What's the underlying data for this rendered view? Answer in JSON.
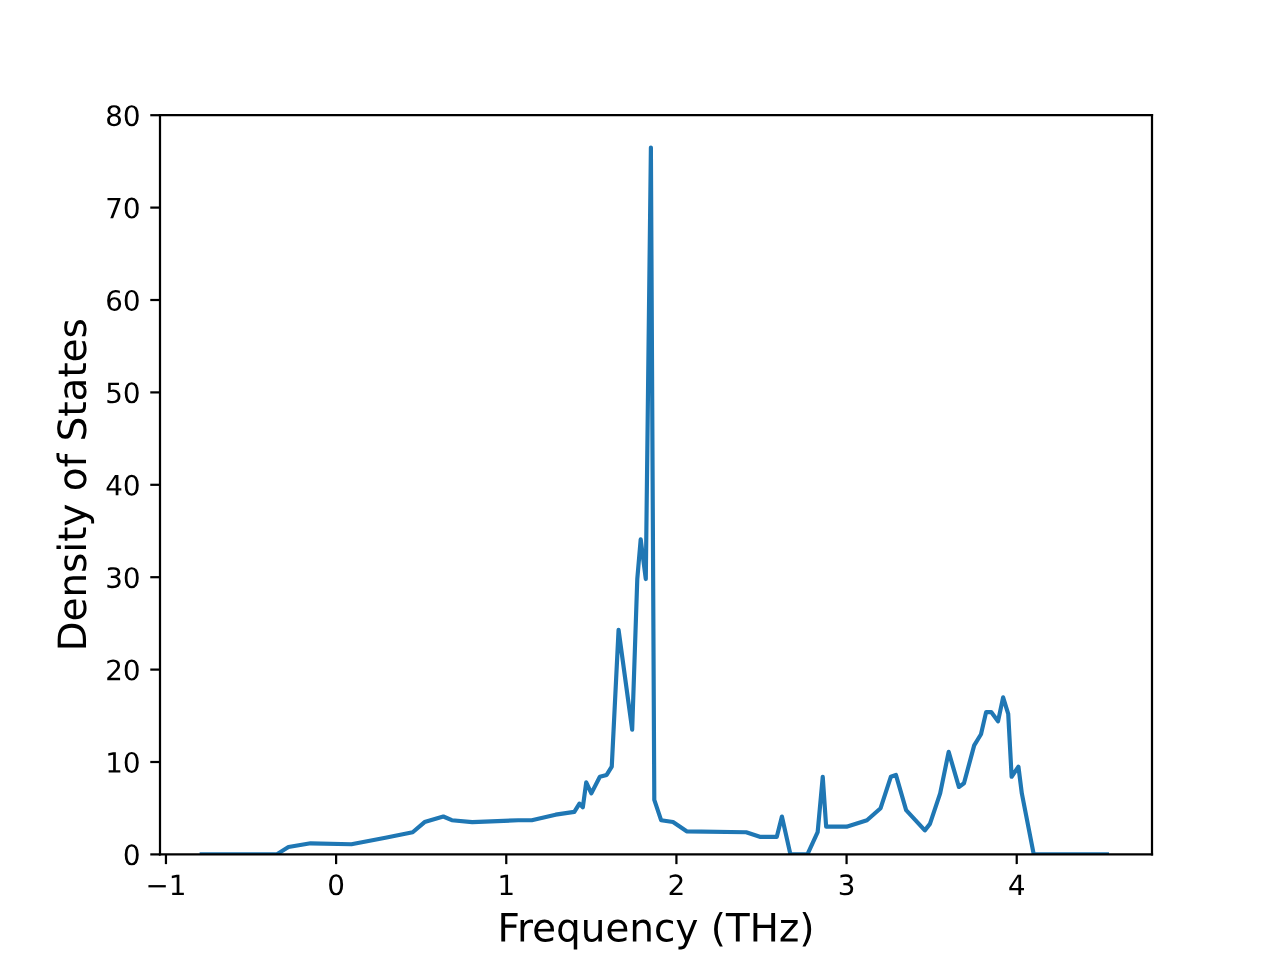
{
  "chart_data": {
    "type": "line",
    "xlabel": "Frequency (THz)",
    "ylabel": "Density of States",
    "xlim": [
      -1.035,
      4.795
    ],
    "ylim": [
      0,
      80
    ],
    "xticks": [
      {
        "value": -1,
        "label": "−1"
      },
      0,
      1,
      2,
      3,
      4
    ],
    "yticks": [
      0,
      10,
      20,
      30,
      40,
      50,
      60,
      70,
      80
    ],
    "grid": false,
    "legend": false,
    "series": [
      {
        "color": "#1f77b4",
        "x": [
          -0.79,
          -0.35,
          -0.28,
          -0.15,
          0.09,
          0.29,
          0.45,
          0.52,
          0.63,
          0.68,
          0.8,
          1.07,
          1.15,
          1.29,
          1.4,
          1.43,
          1.45,
          1.47,
          1.5,
          1.55,
          1.59,
          1.62,
          1.66,
          1.74,
          1.77,
          1.79,
          1.82,
          1.85,
          1.87,
          1.91,
          1.98,
          2.06,
          2.41,
          2.49,
          2.59,
          2.62,
          2.67,
          2.77,
          2.83,
          2.86,
          2.88,
          3.0,
          3.12,
          3.2,
          3.26,
          3.29,
          3.35,
          3.46,
          3.49,
          3.55,
          3.6,
          3.66,
          3.69,
          3.75,
          3.79,
          3.82,
          3.85,
          3.89,
          3.92,
          3.95,
          3.97,
          4.01,
          4.03,
          4.1,
          4.53
        ],
        "values": [
          0,
          0,
          0.8,
          1.2,
          1.1,
          1.8,
          2.4,
          3.5,
          4.1,
          3.7,
          3.5,
          3.7,
          3.7,
          4.3,
          4.6,
          5.5,
          5.1,
          7.8,
          6.6,
          8.4,
          8.6,
          9.5,
          24.3,
          13.5,
          29.8,
          34.1,
          29.8,
          76.5,
          5.9,
          3.7,
          3.5,
          2.5,
          2.4,
          1.9,
          1.9,
          4.1,
          0,
          0,
          2.4,
          8.4,
          3.0,
          3.0,
          3.7,
          5.0,
          8.4,
          8.6,
          4.8,
          2.6,
          3.3,
          6.6,
          11.1,
          7.3,
          7.7,
          11.8,
          13.0,
          15.4,
          15.4,
          14.4,
          17.0,
          15.2,
          8.4,
          9.5,
          6.6,
          0,
          0
        ]
      }
    ]
  }
}
